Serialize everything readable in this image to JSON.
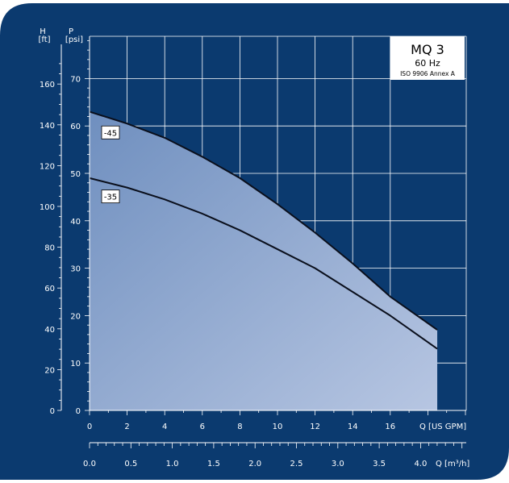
{
  "colors": {
    "background": "#0b3a6f",
    "frame": "#ffffff",
    "grid": "#ffffff",
    "area_dark": "#6f8fbf",
    "area_light": "#b7c6e2",
    "curve": "#0a0f1c",
    "text": "#ffffff",
    "box_fill": "#ffffff",
    "box_text": "#000000"
  },
  "chart_data": {
    "type": "line",
    "title_box": {
      "title": "MQ 3",
      "line2": "60 Hz",
      "line3": "ISO 9906 Annex A"
    },
    "left_axis_H": {
      "label_top": "H",
      "unit": "[ft]",
      "ticks": [
        "0",
        "20",
        "40",
        "60",
        "80",
        "100",
        "120",
        "140",
        "160"
      ],
      "values": [
        0,
        20,
        40,
        60,
        80,
        100,
        120,
        140,
        160
      ]
    },
    "left_axis_P": {
      "label_top": "P",
      "unit": "[psi]",
      "ticks": [
        "0",
        "10",
        "20",
        "30",
        "40",
        "50",
        "60",
        "70"
      ],
      "values": [
        0,
        10,
        20,
        30,
        40,
        50,
        60,
        70
      ]
    },
    "x_axis_gpm": {
      "label": "Q [US GPM]",
      "ticks": [
        "0",
        "2",
        "4",
        "6",
        "8",
        "10",
        "12",
        "14",
        "16"
      ],
      "values": [
        0,
        2,
        4,
        6,
        8,
        10,
        12,
        14,
        16
      ],
      "range": [
        0,
        19
      ]
    },
    "x_axis_m3h": {
      "label": "Q [m³/h]",
      "ticks": [
        "0.0",
        "0.5",
        "1.0",
        "1.5",
        "2.0",
        "2.5",
        "3.0",
        "3.5",
        "4.0"
      ],
      "values": [
        0.0,
        0.5,
        1.0,
        1.5,
        2.0,
        2.5,
        3.0,
        3.5,
        4.0
      ]
    },
    "ylim_psi": [
      0,
      80
    ],
    "grid": true,
    "series": [
      {
        "name": "-45",
        "x": [
          0,
          2,
          4,
          6,
          8,
          10,
          12,
          14,
          16,
          18.5
        ],
        "y": [
          63,
          60.5,
          57.5,
          53.5,
          49,
          43.5,
          37.5,
          31,
          24,
          17
        ]
      },
      {
        "name": "-35",
        "x": [
          0,
          2,
          4,
          6,
          8,
          10,
          12,
          14,
          16,
          18.5
        ],
        "y": [
          49,
          47,
          44.5,
          41.5,
          38,
          34,
          30,
          25,
          20,
          13
        ]
      }
    ]
  }
}
